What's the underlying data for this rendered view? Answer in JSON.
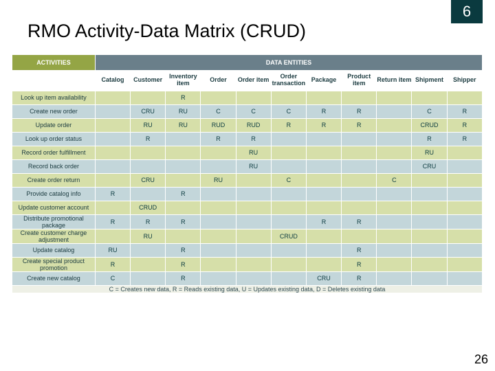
{
  "chapter_number": "6",
  "page_title": "RMO Activity-Data Matrix (CRUD)",
  "page_number": "26",
  "table": {
    "activities_header": "ACTIVITIES",
    "entities_header": "DATA ENTITIES",
    "columns": [
      "Catalog",
      "Customer",
      "Inventory item",
      "Order",
      "Order item",
      "Order transaction",
      "Package",
      "Product item",
      "Return item",
      "Shipment",
      "Shipper"
    ],
    "rows": [
      {
        "label": "Look up item availability",
        "cells": [
          "",
          "",
          "R",
          "",
          "",
          "",
          "",
          "",
          "",
          "",
          ""
        ]
      },
      {
        "label": "Create new order",
        "cells": [
          "",
          "CRU",
          "RU",
          "C",
          "C",
          "C",
          "R",
          "R",
          "",
          "C",
          "R"
        ]
      },
      {
        "label": "Update order",
        "cells": [
          "",
          "RU",
          "RU",
          "RUD",
          "RUD",
          "R",
          "R",
          "R",
          "",
          "CRUD",
          "R"
        ]
      },
      {
        "label": "Look up order status",
        "cells": [
          "",
          "R",
          "",
          "R",
          "R",
          "",
          "",
          "",
          "",
          "R",
          "R"
        ]
      },
      {
        "label": "Record order fulfillment",
        "cells": [
          "",
          "",
          "",
          "",
          "RU",
          "",
          "",
          "",
          "",
          "RU",
          ""
        ]
      },
      {
        "label": "Record back order",
        "cells": [
          "",
          "",
          "",
          "",
          "RU",
          "",
          "",
          "",
          "",
          "CRU",
          ""
        ]
      },
      {
        "label": "Create order return",
        "cells": [
          "",
          "CRU",
          "",
          "RU",
          "",
          "C",
          "",
          "",
          "C",
          "",
          ""
        ]
      },
      {
        "label": "Provide catalog info",
        "cells": [
          "R",
          "",
          "R",
          "",
          "",
          "",
          "",
          "",
          "",
          "",
          ""
        ]
      },
      {
        "label": "Update customer account",
        "cells": [
          "",
          "CRUD",
          "",
          "",
          "",
          "",
          "",
          "",
          "",
          "",
          ""
        ]
      },
      {
        "label": "Distribute promotional package",
        "cells": [
          "R",
          "R",
          "R",
          "",
          "",
          "",
          "R",
          "R",
          "",
          "",
          ""
        ]
      },
      {
        "label": "Create customer charge adjustment",
        "cells": [
          "",
          "RU",
          "",
          "",
          "",
          "CRUD",
          "",
          "",
          "",
          "",
          ""
        ]
      },
      {
        "label": "Update catalog",
        "cells": [
          "RU",
          "",
          "R",
          "",
          "",
          "",
          "",
          "R",
          "",
          "",
          ""
        ]
      },
      {
        "label": "Create special product promotion",
        "cells": [
          "R",
          "",
          "R",
          "",
          "",
          "",
          "",
          "R",
          "",
          "",
          ""
        ]
      },
      {
        "label": "Create new catalog",
        "cells": [
          "C",
          "",
          "R",
          "",
          "",
          "",
          "CRU",
          "R",
          "",
          "",
          ""
        ]
      }
    ],
    "legend": "C = Creates new data,  R = Reads existing data,  U = Updates existing data,  D = Deletes existing data",
    "row_colors": [
      "#d6dfa9",
      "#c3d6da"
    ],
    "header_activities_bg": "#94a545",
    "header_entities_bg": "#6a7f8a",
    "text_color": "#0a3a3f",
    "font_size_cell": 9,
    "font_size_header": 11
  }
}
